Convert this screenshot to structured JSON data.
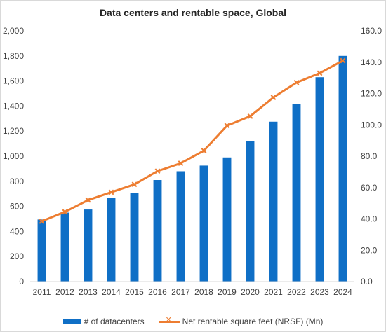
{
  "chart_data": {
    "type": "bar",
    "title": "Data centers and rentable space, Global",
    "categories": [
      "2011",
      "2012",
      "2013",
      "2014",
      "2015",
      "2016",
      "2017",
      "2018",
      "2019",
      "2020",
      "2021",
      "2022",
      "2023",
      "2024"
    ],
    "series": [
      {
        "name": "# of datacenters",
        "type": "bar",
        "axis": "left",
        "color": "#0f6fc6",
        "values": [
          495,
          550,
          575,
          665,
          705,
          810,
          880,
          925,
          990,
          1120,
          1275,
          1415,
          1630,
          1800
        ]
      },
      {
        "name": "Net rentable square feet (NRSF) (Mn)",
        "type": "line",
        "axis": "right",
        "color": "#ed7d31",
        "values": [
          38.5,
          44.5,
          52,
          57,
          62,
          70.5,
          75.5,
          83.5,
          99.5,
          105.5,
          117.5,
          127,
          133,
          141
        ]
      }
    ],
    "y_left": {
      "min": 0,
      "max": 2000,
      "step": 200,
      "ticks": [
        "0",
        "200",
        "400",
        "600",
        "800",
        "1,000",
        "1,200",
        "1,400",
        "1,600",
        "1,800",
        "2,000"
      ]
    },
    "y_right": {
      "min": 0,
      "max": 160,
      "step": 20,
      "ticks": [
        "0.0",
        "20.0",
        "40.0",
        "60.0",
        "80.0",
        "100.0",
        "120.0",
        "140.0",
        "160.0"
      ]
    },
    "xlabel": "",
    "ylabel": "",
    "grid": false,
    "legend_position": "bottom"
  }
}
